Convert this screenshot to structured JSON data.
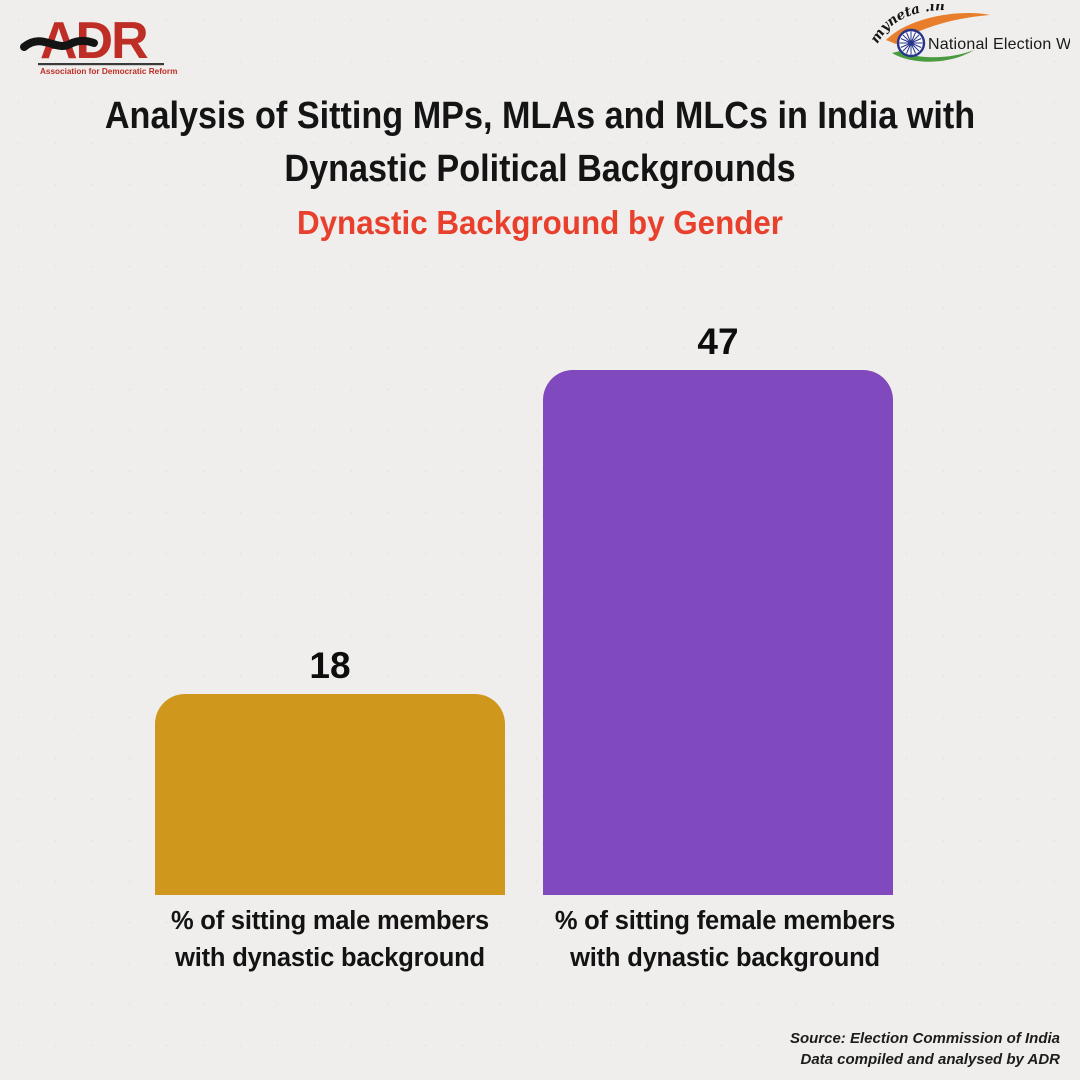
{
  "header": {
    "adr_logo": {
      "acronym": "ADR",
      "tagline": "Association for Democratic Reforms"
    },
    "myneta_logo": {
      "brand": "myneta .info",
      "label": "National Election Watch"
    }
  },
  "main_title_lines": [
    "Analysis of Sitting MPs, MLAs and MLCs in India with",
    "Dynastic Political Backgrounds"
  ],
  "subtitle": "Dynastic Background by Gender",
  "subtitle_color": "#e8402c",
  "chart_data": {
    "type": "bar",
    "title": "Dynastic Background by Gender",
    "categories": [
      "% of sitting male members with dynastic background",
      "% of sitting female members with dynastic background"
    ],
    "values": [
      18,
      47
    ],
    "colors": [
      "#cf981d",
      "#8149be"
    ],
    "label_lines": [
      [
        "% of sitting male members",
        "with dynastic background"
      ],
      [
        "% of sitting female members",
        "with dynastic background"
      ]
    ],
    "xlabel": "",
    "ylabel": "",
    "ylim": [
      0,
      50
    ],
    "grid": false,
    "legend": false,
    "value_labels": true
  },
  "source": {
    "line1": "Source: Election Commission of India",
    "line2": "Data compiled and analysed by ADR"
  }
}
